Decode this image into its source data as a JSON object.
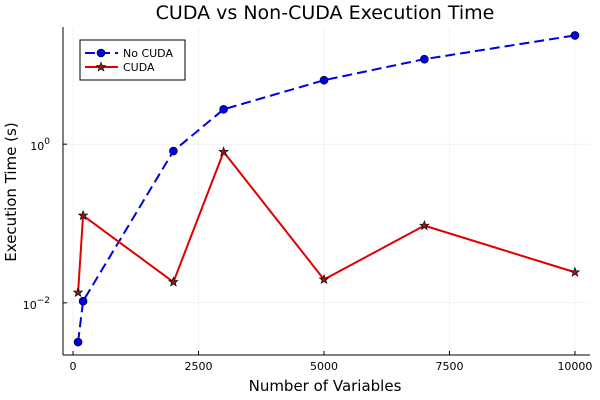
{
  "chart_data": {
    "type": "line",
    "title": "CUDA vs Non-CUDA Execution Time",
    "xlabel": "Number of Variables",
    "ylabel": "Execution Time (s)",
    "yscale": "log",
    "xlim": [
      -200,
      10300
    ],
    "ylim": [
      0.0022,
      30
    ],
    "grid": true,
    "legend_position": "top-left",
    "x_ticks": [
      {
        "value": 0,
        "label": "0"
      },
      {
        "value": 2500,
        "label": "2500"
      },
      {
        "value": 5000,
        "label": "5000"
      },
      {
        "value": 7500,
        "label": "7500"
      },
      {
        "value": 10000,
        "label": "10000"
      }
    ],
    "y_ticks": [
      {
        "value": 0.01,
        "base": "10",
        "exp": "−2"
      },
      {
        "value": 1,
        "base": "10",
        "exp": "0"
      }
    ],
    "series": [
      {
        "name": "No CUDA",
        "color": "#0000e0",
        "line_style": "dashed",
        "marker": "circle",
        "marker_color": "#0000e0",
        "x": [
          100,
          200,
          2000,
          3000,
          5000,
          7000,
          10000
        ],
        "y": [
          0.0032,
          0.0105,
          0.82,
          2.75,
          6.4,
          11.8,
          23.5
        ]
      },
      {
        "name": "CUDA",
        "color": "#e00000",
        "line_style": "solid",
        "marker": "star",
        "marker_color": "#8b1a1a",
        "x": [
          100,
          200,
          2000,
          3000,
          5000,
          7000,
          10000
        ],
        "y": [
          0.0135,
          0.126,
          0.0183,
          0.8,
          0.0197,
          0.094,
          0.0243
        ]
      }
    ]
  }
}
